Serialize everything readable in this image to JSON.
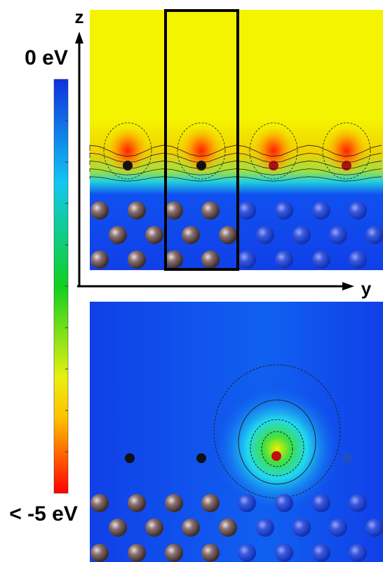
{
  "axes": {
    "z": "z",
    "y": "y"
  },
  "colorbar": {
    "top_label": "0 eV",
    "bottom_label": "< -5 eV"
  }
}
